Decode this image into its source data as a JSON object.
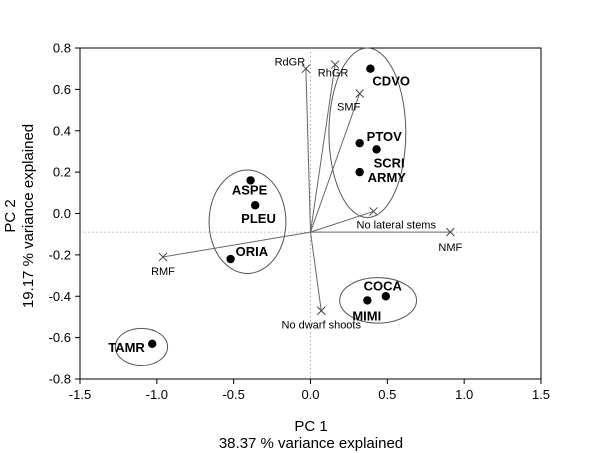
{
  "chart_data": {
    "type": "scatter",
    "xlabel": "PC 1",
    "xlabel_sub": "38.37 % variance explained",
    "ylabel": "PC 2",
    "ylabel_sub": "19.17 % variance explained",
    "xlim": [
      -1.5,
      1.5
    ],
    "ylim": [
      -0.8,
      0.8
    ],
    "x_ticks": [
      -1.5,
      -1.0,
      -0.5,
      0.0,
      0.5,
      1.0,
      1.5
    ],
    "x_tick_labels": [
      "-1.5",
      "-1.0",
      "-0.5",
      "0.0",
      "0.5",
      "1.0",
      "1.5"
    ],
    "y_ticks": [
      -0.8,
      -0.6,
      -0.4,
      -0.2,
      0.0,
      0.2,
      0.4,
      0.6,
      0.8
    ],
    "y_tick_labels": [
      "-0.8",
      "-0.6",
      "-0.4",
      "-0.2",
      "0.0",
      "0.2",
      "0.4",
      "0.6",
      "0.8"
    ],
    "reference_lines": {
      "x": 0.0,
      "y": -0.09,
      "style": "dotted"
    },
    "grid": false,
    "points": [
      {
        "label": "CDVO",
        "x": 0.39,
        "y": 0.7
      },
      {
        "label": "PTOV",
        "x": 0.32,
        "y": 0.34
      },
      {
        "label": "SCRI",
        "x": 0.43,
        "y": 0.31
      },
      {
        "label": "ARMY",
        "x": 0.32,
        "y": 0.2
      },
      {
        "label": "ASPE",
        "x": -0.39,
        "y": 0.16
      },
      {
        "label": "PLEU",
        "x": -0.36,
        "y": 0.04
      },
      {
        "label": "ORIA",
        "x": -0.52,
        "y": -0.22
      },
      {
        "label": "COCA",
        "x": 0.49,
        "y": -0.4
      },
      {
        "label": "MIMI",
        "x": 0.37,
        "y": -0.42
      },
      {
        "label": "TAMR",
        "x": -1.03,
        "y": -0.63
      }
    ],
    "vectors": [
      {
        "label": "RdGR",
        "x": -0.03,
        "y": 0.7
      },
      {
        "label": "RhGR",
        "x": 0.16,
        "y": 0.72
      },
      {
        "label": "SMF",
        "x": 0.32,
        "y": 0.58
      },
      {
        "label": "No lateral stems",
        "x": 0.41,
        "y": 0.01
      },
      {
        "label": "NMF",
        "x": 0.91,
        "y": -0.09
      },
      {
        "label": "RMF",
        "x": -0.96,
        "y": -0.21
      },
      {
        "label": "No dwarf shoots",
        "x": 0.07,
        "y": -0.47
      }
    ],
    "vector_origin": {
      "x": 0.0,
      "y": -0.09
    },
    "groups": [
      {
        "members": [
          "CDVO",
          "PTOV",
          "SCRI",
          "ARMY",
          "SMF"
        ],
        "cx": 0.37,
        "cy": 0.39,
        "rx": 0.25,
        "ry": 0.41
      },
      {
        "members": [
          "ASPE",
          "PLEU",
          "ORIA"
        ],
        "cx": -0.41,
        "cy": -0.04,
        "rx": 0.25,
        "ry": 0.25
      },
      {
        "members": [
          "COCA",
          "MIMI"
        ],
        "cx": 0.44,
        "cy": -0.42,
        "rx": 0.25,
        "ry": 0.11
      },
      {
        "members": [
          "TAMR"
        ],
        "cx": -1.1,
        "cy": -0.645,
        "rx": 0.17,
        "ry": 0.09
      }
    ]
  }
}
